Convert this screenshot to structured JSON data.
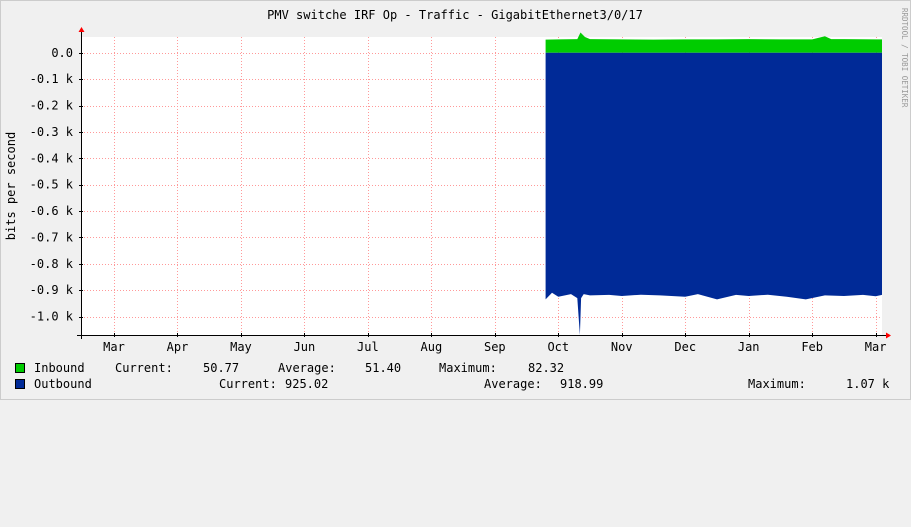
{
  "chart_data": {
    "type": "area",
    "title": "PMV switche IRF Op - Traffic - GigabitEthernet3/0/17",
    "ylabel": "bits per second",
    "side_label": "RRDTOOL / TOBI OETIKER",
    "ylim": [
      -1070,
      60
    ],
    "y_ticks": [
      "0.0",
      "-0.1 k",
      "-0.2 k",
      "-0.3 k",
      "-0.4 k",
      "-0.5 k",
      "-0.6 k",
      "-0.7 k",
      "-0.8 k",
      "-0.9 k",
      "-1.0 k"
    ],
    "y_tick_values": [
      0,
      -100,
      -200,
      -300,
      -400,
      -500,
      -600,
      -700,
      -800,
      -900,
      -1000
    ],
    "x_tick_labels": [
      "Mar",
      "Apr",
      "May",
      "Jun",
      "Jul",
      "Aug",
      "Sep",
      "Oct",
      "Nov",
      "Dec",
      "Jan",
      "Feb",
      "Mar"
    ],
    "x_month_index": [
      0,
      1,
      2,
      3,
      4,
      5,
      6,
      7,
      8,
      9,
      10,
      11,
      12
    ],
    "xlim_months": [
      -0.52,
      12.1
    ],
    "grid": true,
    "series": [
      {
        "name": "Inbound",
        "color": "#00cc00",
        "x_months": [
          6.8,
          7.0,
          7.3,
          7.35,
          7.42,
          7.5,
          8.0,
          8.5,
          9.0,
          9.5,
          10.0,
          10.5,
          11.0,
          11.2,
          11.3,
          11.5,
          12.0,
          12.1
        ],
        "values": [
          50,
          51,
          52,
          77,
          60,
          52,
          51,
          50,
          51,
          51,
          52,
          51,
          51,
          63,
          52,
          52,
          51,
          51
        ]
      },
      {
        "name": "Outbound",
        "color": "#002a97",
        "x_months": [
          6.8,
          6.9,
          7.0,
          7.2,
          7.3,
          7.34,
          7.36,
          7.4,
          7.5,
          7.8,
          8.0,
          8.3,
          8.6,
          9.0,
          9.2,
          9.5,
          9.8,
          10.0,
          10.3,
          10.6,
          10.9,
          11.2,
          11.5,
          11.8,
          12.0,
          12.1
        ],
        "values": [
          -935,
          -910,
          -925,
          -915,
          -930,
          -1070,
          -930,
          -915,
          -920,
          -918,
          -922,
          -917,
          -920,
          -925,
          -915,
          -935,
          -918,
          -922,
          -917,
          -925,
          -935,
          -920,
          -922,
          -918,
          -923,
          -918
        ]
      }
    ],
    "legend": [
      {
        "name": "Inbound",
        "current_label": "Current:",
        "current": "50.77",
        "average_label": "Average:",
        "average": "51.40",
        "maximum_label": "Maximum:",
        "maximum": "82.32"
      },
      {
        "name": "Outbound",
        "current_label": "Current:",
        "current": "925.02",
        "average_label": "Average:",
        "average": "918.99",
        "maximum_label": "Maximum:",
        "maximum": "1.07 k"
      }
    ]
  },
  "colors": {
    "background": "#f0f0f0",
    "canvas": "#ffffff",
    "major_grid": "#ff9999",
    "axis": "#000000",
    "arrow": "#ff0000"
  }
}
